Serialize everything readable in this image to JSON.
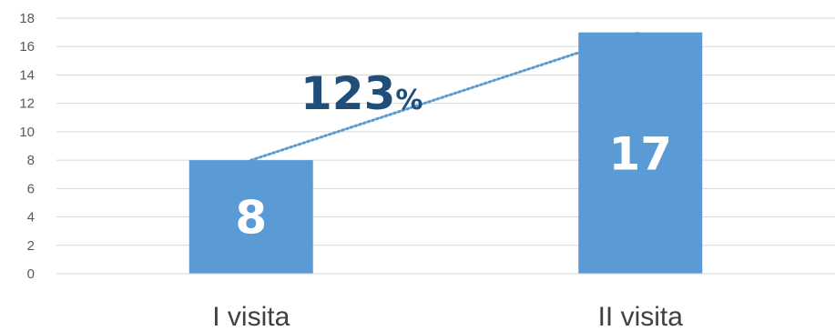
{
  "chart_data": {
    "type": "bar",
    "categories": [
      "I visita",
      "II visita"
    ],
    "values": [
      8,
      17
    ],
    "data_labels": [
      "8",
      "17"
    ],
    "yticks": [
      "0",
      "2",
      "4",
      "6",
      "8",
      "10",
      "12",
      "14",
      "16",
      "18"
    ],
    "ylim": [
      0,
      18
    ],
    "grid": true,
    "legend": "none",
    "trendline": {
      "style": "dotted",
      "from_category": "I visita",
      "to_category": "II visita"
    },
    "annotation": {
      "number": "123",
      "unit": "%"
    },
    "colors": {
      "bar": "#5b9bd5",
      "trend": "#5b9bd5",
      "annotation": "#1f4e79",
      "grid": "#d9d9d9"
    }
  }
}
